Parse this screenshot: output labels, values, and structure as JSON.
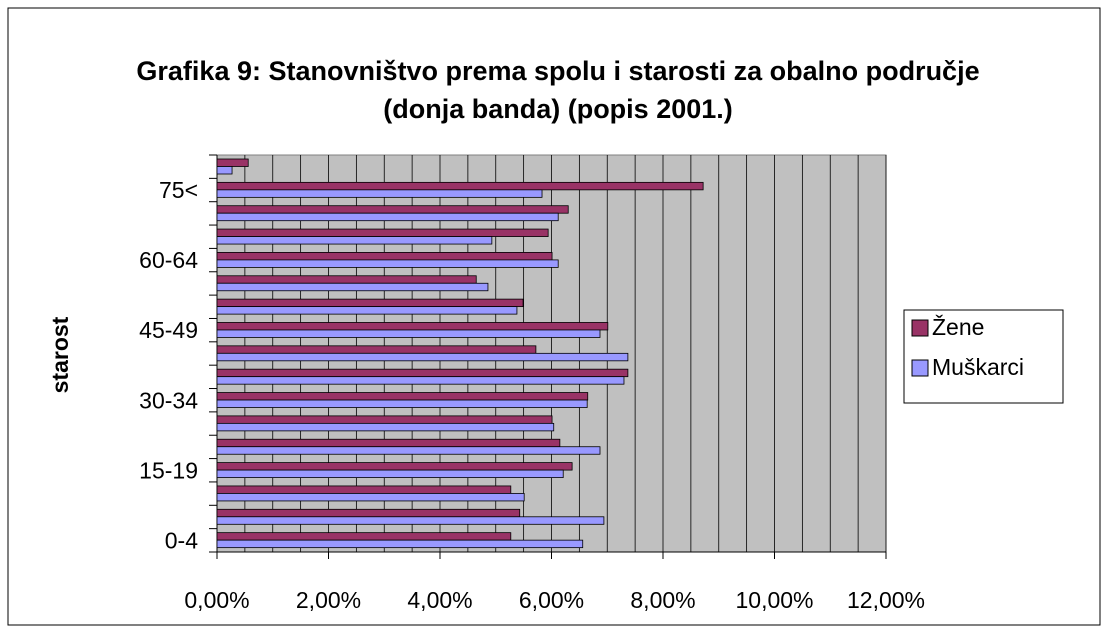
{
  "chart_data": {
    "type": "hbar",
    "title": "Grafika 9: Stanovništvo prema spolu i starosti za obalno područje (donja banda) (popis 2001.)",
    "ylabel": "starost",
    "categories": [
      "0-4",
      null,
      null,
      "15-19",
      null,
      null,
      "30-34",
      null,
      null,
      "45-49",
      null,
      null,
      "60-64",
      null,
      null,
      "75<",
      null
    ],
    "series": [
      {
        "name": "Žene",
        "color": "#993366",
        "values": [
          5.27,
          5.43,
          5.27,
          6.37,
          6.15,
          6.01,
          6.65,
          7.37,
          5.72,
          7.01,
          5.49,
          4.65,
          6.01,
          5.94,
          6.3,
          8.72,
          0.56
        ]
      },
      {
        "name": "Muškarci",
        "color": "#9999ff",
        "values": [
          6.56,
          6.94,
          5.51,
          6.21,
          6.87,
          6.04,
          6.64,
          7.3,
          7.37,
          6.87,
          5.38,
          4.86,
          6.12,
          4.93,
          6.12,
          5.83,
          0.27
        ]
      }
    ],
    "xlim": [
      0,
      12
    ],
    "xticks": [
      {
        "value": 0,
        "label": "0,00%"
      },
      {
        "value": 2,
        "label": "2,00%"
      },
      {
        "value": 4,
        "label": "4,00%"
      },
      {
        "value": 6,
        "label": "6,00%"
      },
      {
        "value": 8,
        "label": "8,00%"
      },
      {
        "value": 10,
        "label": "10,00%"
      },
      {
        "value": 12,
        "label": "12,00%"
      }
    ],
    "xminorticks": [
      0.5,
      1,
      1.5,
      2.5,
      3,
      3.5,
      4.5,
      5,
      5.5,
      6.5,
      7,
      7.5,
      8.5,
      9,
      9.5,
      10.5,
      11,
      11.5
    ],
    "grid": true,
    "plot_background": "#c0c0c0",
    "legend": "right"
  }
}
